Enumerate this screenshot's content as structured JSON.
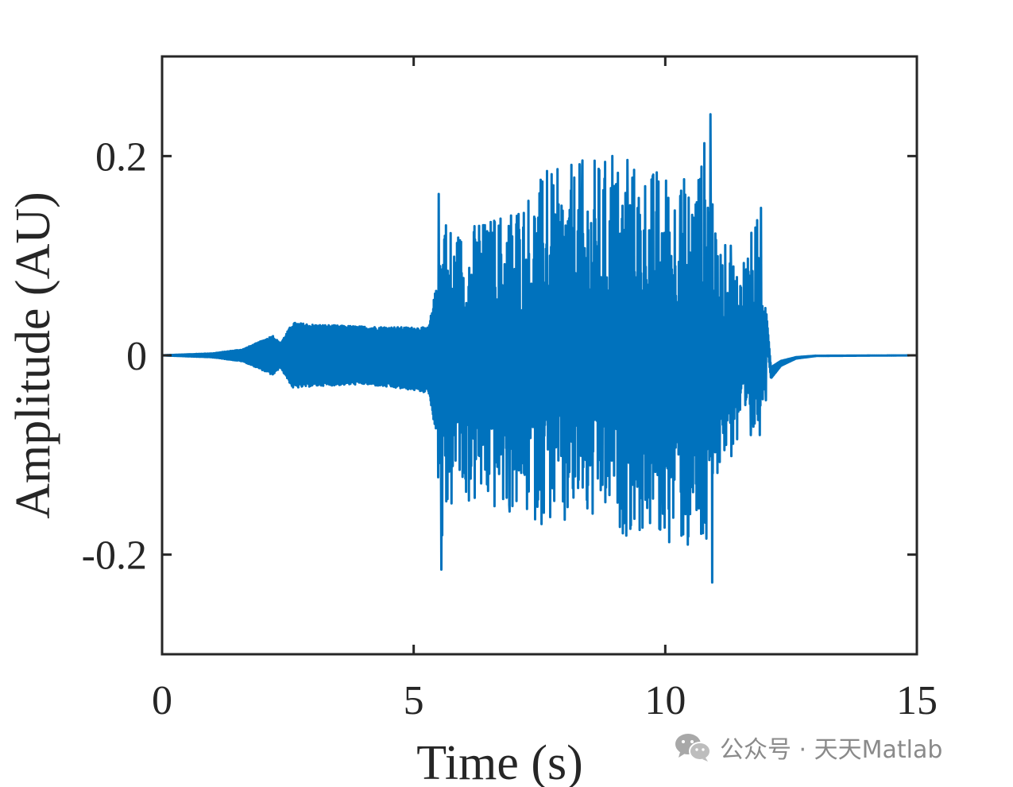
{
  "chart_data": {
    "type": "line",
    "title": "",
    "xlabel": "Time (s)",
    "ylabel": "Amplitude (AU)",
    "xlim": [
      0,
      15
    ],
    "ylim": [
      -0.3,
      0.3
    ],
    "xticks": [
      0,
      5,
      10,
      15
    ],
    "xtick_labels": [
      "0",
      "5",
      "10",
      "15"
    ],
    "yticks": [
      -0.2,
      0,
      0.2
    ],
    "ytick_labels": [
      "-0.2",
      "0",
      "0.2"
    ],
    "grid": false,
    "legend": "none",
    "series": [
      {
        "color": "#0072BD",
        "envelope": {
          "t": [
            0,
            1.0,
            1.6,
            2.0,
            2.2,
            2.35,
            2.6,
            3.0,
            4.0,
            5.0,
            5.3,
            5.45,
            5.55,
            5.8,
            6.5,
            7.5,
            8.5,
            9.0,
            10.0,
            10.5,
            10.9,
            11.0,
            11.5,
            11.9,
            12.0,
            12.1,
            12.3,
            12.6,
            13.0,
            15.0
          ],
          "upper": [
            0,
            0.002,
            0.006,
            0.015,
            0.02,
            0.012,
            0.033,
            0.031,
            0.029,
            0.028,
            0.028,
            0.07,
            0.16,
            0.13,
            0.14,
            0.18,
            0.2,
            0.2,
            0.19,
            0.18,
            0.24,
            0.12,
            0.1,
            0.15,
            0.1,
            0.01,
            0.004,
            0.001,
            0,
            0
          ],
          "lower": [
            0,
            -0.002,
            -0.006,
            -0.015,
            -0.02,
            -0.012,
            -0.033,
            -0.031,
            -0.029,
            -0.035,
            -0.038,
            -0.08,
            -0.21,
            -0.15,
            -0.16,
            -0.17,
            -0.18,
            -0.18,
            -0.19,
            -0.2,
            -0.23,
            -0.12,
            -0.1,
            -0.08,
            -0.03,
            -0.045,
            -0.02,
            -0.006,
            -0.001,
            0
          ]
        },
        "bursts": [
          {
            "t": 5.5,
            "y": 0.162
          },
          {
            "t": 5.55,
            "y": -0.215
          },
          {
            "t": 5.62,
            "y": 0.12
          },
          {
            "t": 5.9,
            "y": 0.1
          },
          {
            "t": 6.3,
            "y": 0.13
          },
          {
            "t": 6.6,
            "y": 0.135
          },
          {
            "t": 6.9,
            "y": -0.15
          },
          {
            "t": 7.05,
            "y": 0.14
          },
          {
            "t": 7.65,
            "y": 0.185
          },
          {
            "t": 8.0,
            "y": -0.165
          },
          {
            "t": 8.35,
            "y": 0.19
          },
          {
            "t": 8.75,
            "y": -0.13
          },
          {
            "t": 8.95,
            "y": 0.2
          },
          {
            "t": 9.25,
            "y": 0.196
          },
          {
            "t": 9.5,
            "y": -0.14
          },
          {
            "t": 9.75,
            "y": 0.18
          },
          {
            "t": 9.9,
            "y": -0.175
          },
          {
            "t": 10.3,
            "y": 0.16
          },
          {
            "t": 10.45,
            "y": -0.19
          },
          {
            "t": 10.7,
            "y": 0.16
          },
          {
            "t": 10.9,
            "y": 0.242
          },
          {
            "t": 10.93,
            "y": -0.228
          },
          {
            "t": 11.3,
            "y": 0.11
          },
          {
            "t": 11.7,
            "y": -0.08
          },
          {
            "t": 11.9,
            "y": 0.148
          },
          {
            "t": 12.0,
            "y": -0.045
          }
        ]
      }
    ]
  },
  "watermark": {
    "icon": "wechat-icon",
    "text": "公众号 · 天天Matlab"
  }
}
